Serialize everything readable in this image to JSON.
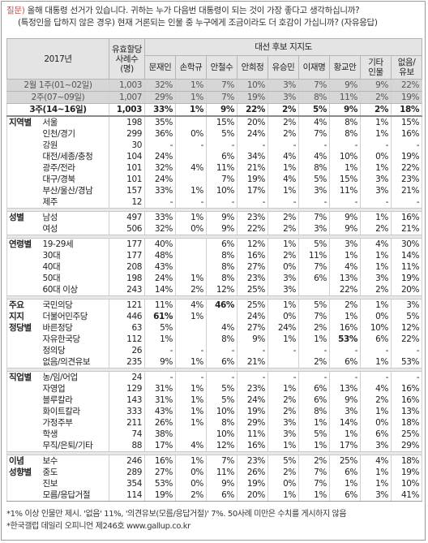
{
  "question": {
    "tag": "질문)",
    "line1": "올해 대통령 선거가 있습니다. 귀하는 누가 다음번 대통령이 되는 것이 가장 좋다고 생각하십니까?",
    "line2": "(특정인을 답하지 않은 경우) 현재 거론되는 인물 중 누구에게 조금이라도 더 호감이 가십니까? (자유응답)"
  },
  "table": {
    "header": {
      "period": "2017년",
      "n": [
        "유효할당",
        "사례수",
        "(명)"
      ],
      "group": "대선 후보 지지도",
      "candidates": [
        [
          "문재인"
        ],
        [
          "손학규"
        ],
        [
          "안철수"
        ],
        [
          "안희정"
        ],
        [
          "유승민"
        ],
        [
          "이재명"
        ],
        [
          "황교안"
        ],
        [
          "기타",
          "인물"
        ],
        [
          "없음/",
          "유보"
        ]
      ]
    },
    "trend": [
      {
        "label": "2월 1주(01~02일)",
        "n": "1,003",
        "values": [
          "32%",
          "1%",
          "7%",
          "10%",
          "3%",
          "7%",
          "9%",
          "9%",
          "22%"
        ]
      },
      {
        "label": "2주(07~09일)",
        "n": "1,007",
        "values": [
          "29%",
          "1%",
          "7%",
          "19%",
          "3%",
          "8%",
          "11%",
          "2%",
          "19%"
        ]
      },
      {
        "label": "3주(14~16일)",
        "n": "1,003",
        "values": [
          "33%",
          "1%",
          "9%",
          "22%",
          "2%",
          "5%",
          "9%",
          "2%",
          "18%"
        ]
      }
    ],
    "groups": [
      {
        "label": [
          "지역별"
        ],
        "rows": [
          {
            "label": "서울",
            "n": "198",
            "values": [
              "35%",
              null,
              "15%",
              "20%",
              "2%",
              "4%",
              "8%",
              "1%",
              "15%"
            ]
          },
          {
            "label": "인천/경기",
            "n": "299",
            "values": [
              "36%",
              "0%",
              "5%",
              "24%",
              "2%",
              "7%",
              "8%",
              "1%",
              "16%"
            ]
          },
          {
            "label": "강원",
            "n": "30",
            "values": [
              "-",
              "-",
              "-",
              "-",
              "-",
              "-",
              "-",
              "-",
              "-"
            ]
          },
          {
            "label": "대전/세종/충청",
            "n": "104",
            "values": [
              "24%",
              null,
              "6%",
              "34%",
              "4%",
              "4%",
              "10%",
              "0%",
              "19%"
            ]
          },
          {
            "label": "광주/전라",
            "n": "101",
            "values": [
              "32%",
              "4%",
              "11%",
              "21%",
              "1%",
              "8%",
              "1%",
              "1%",
              "22%"
            ]
          },
          {
            "label": "대구/경북",
            "n": "101",
            "values": [
              "24%",
              null,
              "7%",
              "19%",
              "4%",
              "5%",
              "15%",
              "3%",
              "23%"
            ]
          },
          {
            "label": "부산/울산/경남",
            "n": "157",
            "values": [
              "33%",
              "1%",
              "10%",
              "17%",
              "1%",
              "3%",
              "11%",
              "3%",
              "21%"
            ]
          },
          {
            "label": "제주",
            "n": "12",
            "values": [
              "-",
              "-",
              "-",
              "-",
              "-",
              "-",
              "-",
              "-",
              "-"
            ]
          }
        ]
      },
      {
        "label": [
          "성별"
        ],
        "rows": [
          {
            "label": "남성",
            "n": "497",
            "values": [
              "33%",
              "1%",
              "9%",
              "23%",
              "2%",
              "7%",
              "9%",
              "1%",
              "16%"
            ]
          },
          {
            "label": "여성",
            "n": "506",
            "values": [
              "32%",
              "0%",
              "9%",
              "22%",
              "2%",
              "3%",
              "9%",
              "2%",
              "21%"
            ]
          }
        ]
      },
      {
        "label": [
          "연령별"
        ],
        "rows": [
          {
            "label": "19-29세",
            "n": "177",
            "values": [
              "40%",
              null,
              "6%",
              "12%",
              "1%",
              "5%",
              "3%",
              "4%",
              "30%"
            ]
          },
          {
            "label": "30대",
            "n": "177",
            "values": [
              "48%",
              null,
              "8%",
              "16%",
              "2%",
              "11%",
              "1%",
              "1%",
              "14%"
            ]
          },
          {
            "label": "40대",
            "n": "208",
            "values": [
              "43%",
              null,
              "8%",
              "27%",
              "0%",
              "7%",
              "4%",
              "1%",
              "11%"
            ]
          },
          {
            "label": "50대",
            "n": "198",
            "values": [
              "24%",
              "1%",
              "8%",
              "23%",
              "3%",
              "6%",
              "13%",
              "3%",
              "19%"
            ]
          },
          {
            "label": "60대 이상",
            "n": "243",
            "values": [
              "14%",
              "2%",
              "12%",
              "25%",
              "3%",
              null,
              "22%",
              "2%",
              "20%"
            ]
          }
        ]
      },
      {
        "label": [
          "주요",
          "지지",
          "정당별"
        ],
        "rows": [
          {
            "label": "국민의당",
            "n": "121",
            "values": [
              "11%",
              "4%",
              "46%",
              "25%",
              "1%",
              "5%",
              "2%",
              "1%",
              "3%"
            ]
          },
          {
            "label": "더불어민주당",
            "n": "446",
            "values": [
              "61%",
              "1%",
              null,
              "24%",
              "0%",
              "7%",
              "1%",
              "0%",
              "5%"
            ]
          },
          {
            "label": "바른정당",
            "n": "63",
            "values": [
              "5%",
              null,
              "4%",
              "27%",
              "24%",
              "2%",
              "16%",
              "10%",
              "12%"
            ]
          },
          {
            "label": "자유한국당",
            "n": "112",
            "values": [
              "1%",
              null,
              "8%",
              "9%",
              "1%",
              "1%",
              "53%",
              "6%",
              "22%"
            ]
          },
          {
            "label": "정의당",
            "n": "26",
            "values": [
              "-",
              "-",
              "-",
              "-",
              "-",
              "-",
              "-",
              "-",
              "-"
            ]
          },
          {
            "label": "없음/의견유보",
            "n": "235",
            "values": [
              "9%",
              "1%",
              "6%",
              "21%",
              null,
              "2%",
              "6%",
              "1%",
              "53%"
            ]
          }
        ]
      },
      {
        "label": [
          "직업별"
        ],
        "rows": [
          {
            "label": "농/임/어업",
            "n": "24",
            "values": [
              "-",
              "-",
              "-",
              "-",
              "-",
              "-",
              "-",
              "-",
              "-"
            ]
          },
          {
            "label": "자영업",
            "n": "129",
            "values": [
              "31%",
              "1%",
              "5%",
              "23%",
              "1%",
              "6%",
              "13%",
              "4%",
              "16%"
            ]
          },
          {
            "label": "블루칼라",
            "n": "143",
            "values": [
              "31%",
              "1%",
              "5%",
              "24%",
              "2%",
              "6%",
              "9%",
              "2%",
              "16%"
            ]
          },
          {
            "label": "화이트칼라",
            "n": "333",
            "values": [
              "43%",
              "1%",
              "10%",
              "19%",
              "2%",
              "8%",
              "3%",
              "1%",
              "13%"
            ]
          },
          {
            "label": "가정주부",
            "n": "211",
            "values": [
              "26%",
              "1%",
              "8%",
              "29%",
              "3%",
              "1%",
              "14%",
              "0%",
              "18%"
            ]
          },
          {
            "label": "학생",
            "n": "74",
            "values": [
              "38%",
              null,
              "10%",
              "11%",
              "3%",
              "5%",
              "1%",
              "6%",
              "25%"
            ]
          },
          {
            "label": "무직/은퇴/기타",
            "n": "88",
            "values": [
              "17%",
              "4%",
              "12%",
              "16%",
              "1%",
              "1%",
              "17%",
              "3%",
              "29%"
            ]
          }
        ]
      },
      {
        "label": [
          "이념",
          "성향별"
        ],
        "rows": [
          {
            "label": "보수",
            "n": "246",
            "values": [
              "16%",
              "1%",
              "7%",
              "23%",
              "5%",
              "2%",
              "25%",
              "4%",
              "18%"
            ]
          },
          {
            "label": "중도",
            "n": "289",
            "values": [
              "27%",
              "0%",
              "11%",
              "26%",
              "2%",
              "7%",
              "6%",
              "1%",
              "19%"
            ]
          },
          {
            "label": "진보",
            "n": "354",
            "values": [
              "53%",
              "0%",
              "9%",
              "19%",
              "0%",
              "7%",
              "1%",
              "1%",
              "10%"
            ]
          },
          {
            "label": "모름/응답거절",
            "n": "114",
            "values": [
              "19%",
              "2%",
              "6%",
              "20%",
              "1%",
              "1%",
              "6%",
              "3%",
              "41%"
            ]
          }
        ]
      }
    ]
  },
  "notes": [
    "*1% 이상 인물만 제시. '없음' 11%, '의견유보(모름/응답거절)' 7%. 50사례 미만은 수치를 게시하지 않음",
    "*한국갤럽 데일리 오피니언 제246호 www.gallup.co.kr"
  ]
}
